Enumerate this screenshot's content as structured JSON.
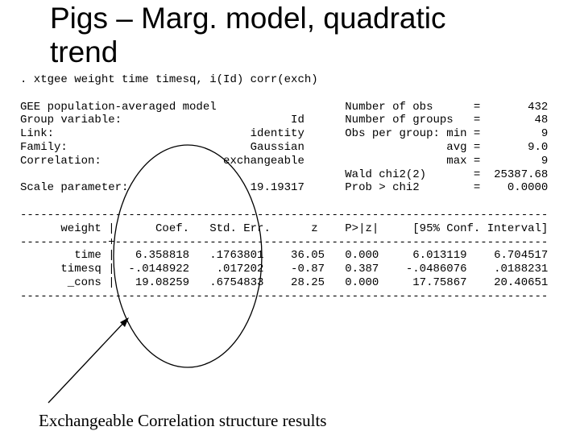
{
  "title": "Pigs – Marg. model, quadratic trend",
  "command": ". xtgee weight time timesq, i(Id) corr(exch)",
  "output": {
    "lines": [
      "GEE population-averaged model                   Number of obs      =       432",
      "Group variable:                         Id      Number of groups   =        48",
      "Link:                             identity      Obs per group: min =         9",
      "Family:                           Gaussian                     avg =       9.0",
      "Correlation:                  exchangeable                     max =         9",
      "                                                Wald chi2(2)       =  25387.68",
      "Scale parameter:                  19.19317      Prob > chi2        =    0.0000",
      "------------------------------------------------------------------------------",
      "      weight |      Coef.   Std. Err.      z    P>|z|     [95% Conf. Interval]",
      "-------------+----------------------------------------------------------------",
      "        time |   6.358818   .1763801    36.05   0.000     6.013119    6.704517",
      "      timesq |  -.0148922    .017202    -0.87   0.387    -.0486076    .0188231",
      "       _cons |   19.08259   .6754833    28.25   0.000     17.75867    20.40651",
      "------------------------------------------------------------------------------"
    ]
  },
  "caption": "Exchangeable Correlation structure results"
}
